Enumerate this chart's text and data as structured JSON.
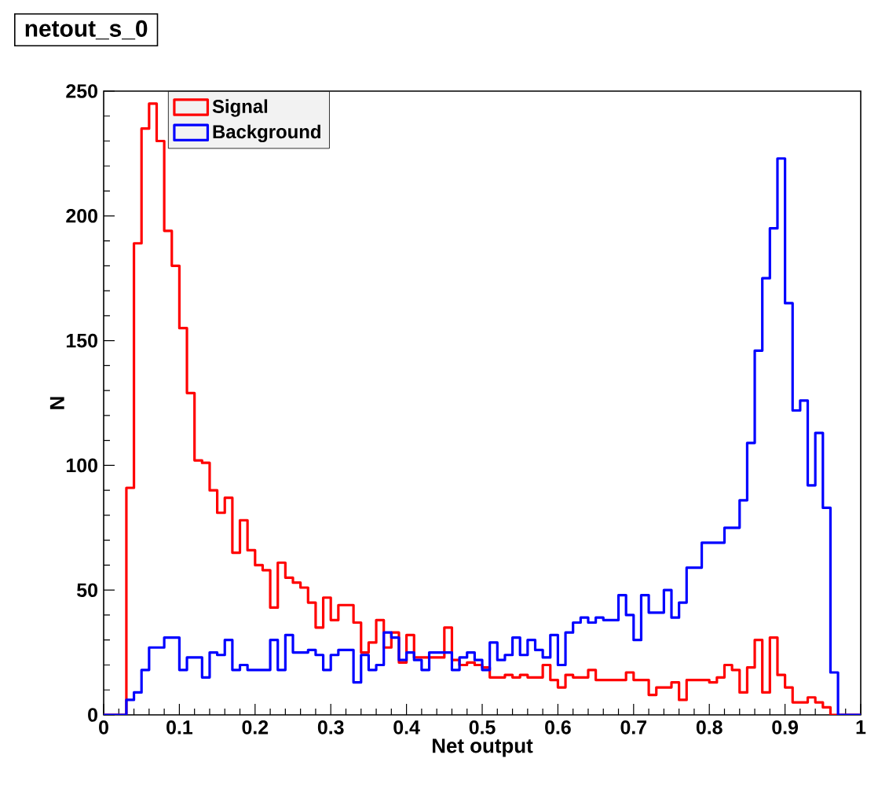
{
  "chart_data": {
    "type": "histogram",
    "title": "netout_s_0",
    "xlabel": "Net output",
    "ylabel": "N",
    "bins": [
      0,
      0.01,
      0.02,
      0.03,
      0.04,
      0.05,
      0.06,
      0.07,
      0.08,
      0.09,
      0.1,
      0.11,
      0.12,
      0.13,
      0.14,
      0.15,
      0.16,
      0.17,
      0.18,
      0.19,
      0.2,
      0.21,
      0.22,
      0.23,
      0.24,
      0.25,
      0.26,
      0.27,
      0.28,
      0.29,
      0.3,
      0.31,
      0.32,
      0.33,
      0.34,
      0.35,
      0.36,
      0.37,
      0.38,
      0.39,
      0.4,
      0.41,
      0.42,
      0.43,
      0.44,
      0.45,
      0.46,
      0.47,
      0.48,
      0.49,
      0.5,
      0.51,
      0.52,
      0.53,
      0.54,
      0.55,
      0.56,
      0.57,
      0.58,
      0.59,
      0.6,
      0.61,
      0.62,
      0.63,
      0.64,
      0.65,
      0.66,
      0.67,
      0.68,
      0.69,
      0.7,
      0.71,
      0.72,
      0.73,
      0.74,
      0.75,
      0.76,
      0.77,
      0.78,
      0.79,
      0.8,
      0.81,
      0.82,
      0.83,
      0.84,
      0.85,
      0.86,
      0.87,
      0.88,
      0.89,
      0.9,
      0.91,
      0.92,
      0.93,
      0.94,
      0.95,
      0.96,
      0.97,
      0.98,
      0.99,
      1
    ],
    "series": [
      {
        "name": "Signal",
        "color": "#ff0000",
        "values": [
          0,
          0,
          0,
          91,
          189,
          235,
          245,
          230,
          194,
          180,
          155,
          129,
          102,
          101,
          90,
          81,
          87,
          65,
          78,
          66,
          60,
          58,
          43,
          61,
          55,
          53,
          51,
          45,
          35,
          47,
          38,
          44,
          44,
          37,
          25,
          29,
          38,
          27,
          33,
          21,
          32,
          23,
          23,
          23,
          23,
          35,
          22,
          20,
          21,
          20,
          19,
          15,
          15,
          16,
          15,
          16,
          15,
          15,
          20,
          14,
          11,
          16,
          15,
          15,
          18,
          14,
          14,
          14,
          14,
          17,
          14,
          14,
          8,
          11,
          11,
          13,
          6,
          14,
          14,
          14,
          13,
          15,
          20,
          18,
          9,
          19,
          30,
          9,
          31,
          16,
          11,
          5,
          5,
          7,
          5,
          3,
          0,
          0,
          0,
          0
        ]
      },
      {
        "name": "Background",
        "color": "#0000ff",
        "values": [
          0,
          0,
          0,
          6,
          9,
          18,
          27,
          27,
          31,
          31,
          18,
          23,
          23,
          15,
          25,
          24,
          30,
          18,
          20,
          18,
          18,
          18,
          30,
          18,
          32,
          25,
          25,
          26,
          24,
          18,
          24,
          26,
          26,
          13,
          24,
          18,
          20,
          33,
          31,
          22,
          25,
          22,
          18,
          25,
          25,
          25,
          18,
          23,
          25,
          22,
          18,
          29,
          22,
          24,
          31,
          24,
          30,
          26,
          23,
          32,
          20,
          33,
          37,
          39,
          37,
          39,
          38,
          38,
          48,
          40,
          30,
          48,
          41,
          41,
          50,
          39,
          45,
          59,
          59,
          69,
          69,
          69,
          75,
          75,
          86,
          109,
          146,
          175,
          195,
          223,
          165,
          122,
          126,
          92,
          113,
          83,
          17,
          0,
          0,
          0
        ]
      }
    ],
    "xlim": [
      0,
      1
    ],
    "ylim": [
      0,
      250
    ],
    "xticks": [
      0,
      0.1,
      0.2,
      0.3,
      0.4,
      0.5,
      0.6,
      0.7,
      0.8,
      0.9,
      1
    ],
    "yticks": [
      0,
      50,
      100,
      150,
      200,
      250
    ],
    "legend": "top left"
  }
}
